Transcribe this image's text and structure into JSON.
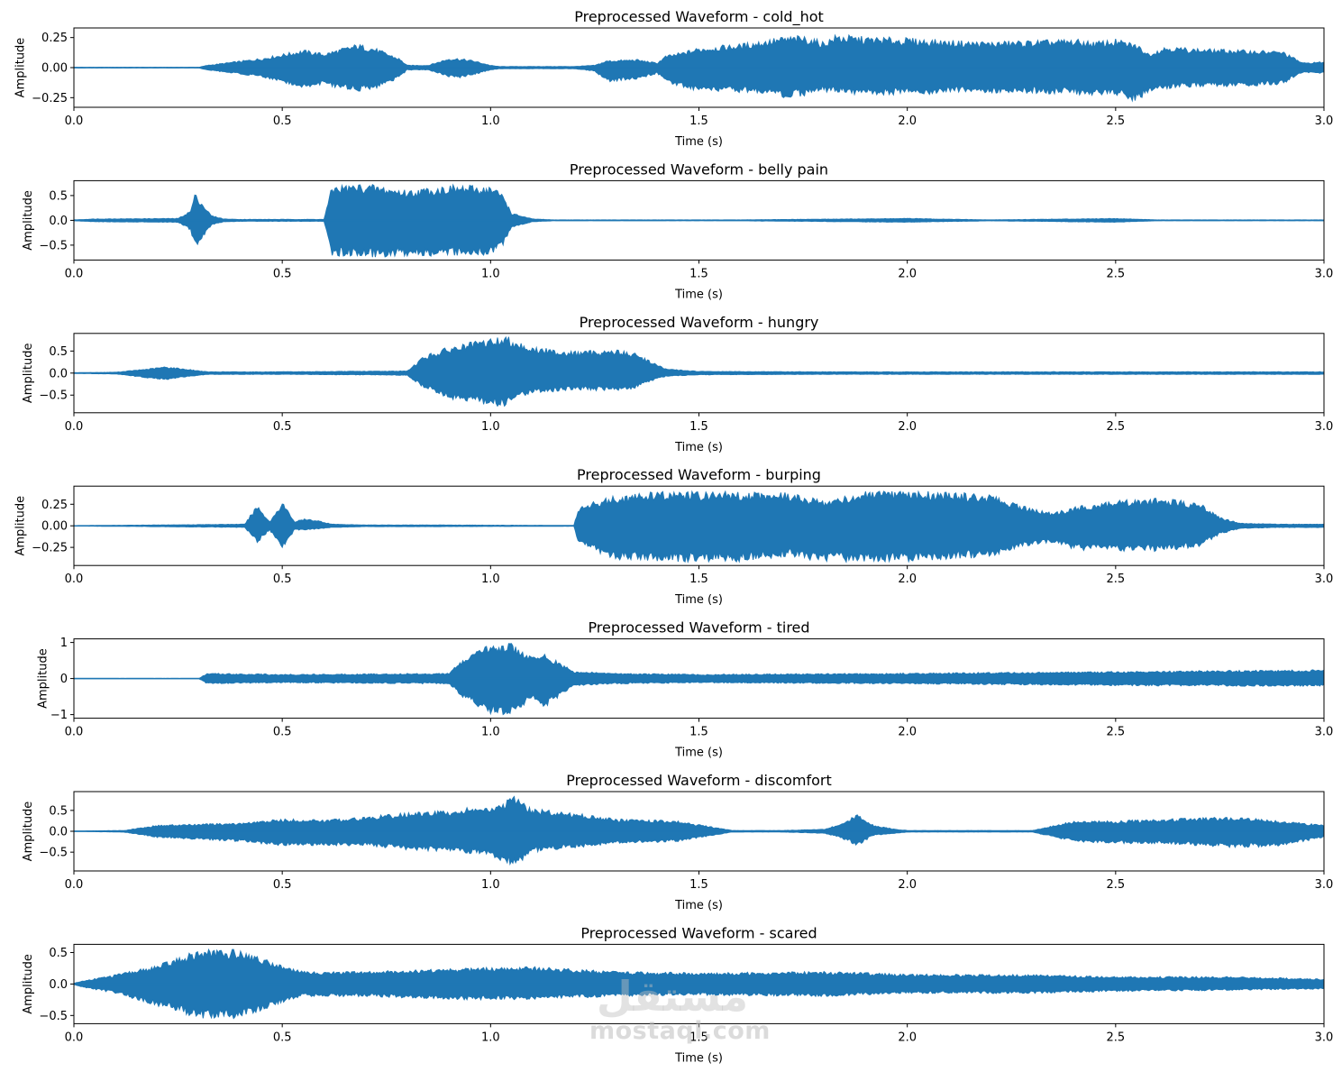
{
  "chart_data": [
    {
      "type": "line",
      "title": "Preprocessed Waveform - cold_hot",
      "xlabel": "Time (s)",
      "ylabel": "Amplitude",
      "xlim": [
        0,
        3
      ],
      "ylim": [
        -0.33,
        0.33
      ],
      "xticks": [
        0,
        0.5,
        1,
        1.5,
        2,
        2.5,
        3
      ],
      "xtick_labels": [
        "0.0",
        "0.5",
        "1.0",
        "1.5",
        "2.0",
        "2.5",
        "3.0"
      ],
      "yticks": [
        -0.25,
        0,
        0.25
      ],
      "ytick_labels": [
        "−0.25",
        "0.00",
        "0.25"
      ],
      "color": "#1f77b4",
      "envelope": {
        "t": [
          0,
          0.3,
          0.32,
          0.45,
          0.55,
          0.6,
          0.68,
          0.72,
          0.78,
          0.8,
          0.85,
          0.9,
          0.92,
          0.96,
          1.0,
          1.02,
          1.2,
          1.25,
          1.28,
          1.35,
          1.4,
          1.42,
          1.46,
          1.5,
          1.6,
          1.7,
          1.75,
          1.8,
          1.83,
          1.9,
          2.0,
          2.1,
          2.2,
          2.3,
          2.4,
          2.45,
          2.5,
          2.55,
          2.58,
          2.62,
          2.7,
          2.8,
          2.9,
          2.95,
          3.0
        ],
        "upper": [
          0.003,
          0.003,
          0.02,
          0.08,
          0.15,
          0.12,
          0.2,
          0.17,
          0.08,
          0.02,
          0.02,
          0.08,
          0.08,
          0.06,
          0.02,
          0.01,
          0.01,
          0.02,
          0.06,
          0.07,
          0.04,
          0.1,
          0.13,
          0.17,
          0.2,
          0.26,
          0.27,
          0.22,
          0.28,
          0.26,
          0.25,
          0.23,
          0.22,
          0.23,
          0.24,
          0.22,
          0.24,
          0.2,
          0.12,
          0.18,
          0.16,
          0.15,
          0.14,
          0.04,
          0.05
        ],
        "lower": [
          -0.003,
          -0.003,
          -0.02,
          -0.08,
          -0.17,
          -0.15,
          -0.2,
          -0.18,
          -0.09,
          -0.02,
          -0.02,
          -0.08,
          -0.09,
          -0.06,
          -0.02,
          -0.01,
          -0.01,
          -0.03,
          -0.12,
          -0.1,
          -0.05,
          -0.12,
          -0.17,
          -0.2,
          -0.21,
          -0.25,
          -0.24,
          -0.2,
          -0.22,
          -0.23,
          -0.23,
          -0.22,
          -0.21,
          -0.22,
          -0.22,
          -0.25,
          -0.23,
          -0.29,
          -0.2,
          -0.18,
          -0.16,
          -0.16,
          -0.14,
          -0.04,
          -0.05
        ]
      }
    },
    {
      "type": "line",
      "title": "Preprocessed Waveform - belly pain",
      "xlabel": "Time (s)",
      "ylabel": "Amplitude",
      "xlim": [
        0,
        3
      ],
      "ylim": [
        -0.8,
        0.8
      ],
      "xticks": [
        0,
        0.5,
        1,
        1.5,
        2,
        2.5,
        3
      ],
      "xtick_labels": [
        "0.0",
        "0.5",
        "1.0",
        "1.5",
        "2.0",
        "2.5",
        "3.0"
      ],
      "yticks": [
        -0.5,
        0,
        0.5
      ],
      "ytick_labels": [
        "−0.5",
        "0.0",
        "0.5"
      ],
      "color": "#1f77b4",
      "envelope": {
        "t": [
          0,
          0.05,
          0.25,
          0.28,
          0.29,
          0.3,
          0.33,
          0.36,
          0.4,
          0.6,
          0.62,
          0.63,
          0.7,
          0.8,
          0.9,
          1.0,
          1.03,
          1.05,
          1.1,
          1.15,
          1.3,
          1.5,
          1.6,
          2.0,
          2.2,
          2.5,
          2.6,
          3.0
        ],
        "upper": [
          0.01,
          0.03,
          0.04,
          0.2,
          0.55,
          0.45,
          0.1,
          0.03,
          0.02,
          0.02,
          0.72,
          0.72,
          0.75,
          0.62,
          0.72,
          0.7,
          0.55,
          0.15,
          0.03,
          0.01,
          0.01,
          0.01,
          0.01,
          0.04,
          0.01,
          0.04,
          0.01,
          0.01
        ],
        "lower": [
          -0.01,
          -0.03,
          -0.04,
          -0.2,
          -0.55,
          -0.5,
          -0.1,
          -0.03,
          -0.02,
          -0.02,
          -0.72,
          -0.72,
          -0.75,
          -0.72,
          -0.72,
          -0.72,
          -0.5,
          -0.15,
          -0.03,
          -0.01,
          -0.01,
          -0.01,
          -0.01,
          -0.04,
          -0.01,
          -0.04,
          -0.01,
          -0.01
        ]
      }
    },
    {
      "type": "line",
      "title": "Preprocessed Waveform - hungry",
      "xlabel": "Time (s)",
      "ylabel": "Amplitude",
      "xlim": [
        0,
        3
      ],
      "ylim": [
        -0.9,
        0.9
      ],
      "xticks": [
        0,
        0.5,
        1,
        1.5,
        2,
        2.5,
        3
      ],
      "xtick_labels": [
        "0.0",
        "0.5",
        "1.0",
        "1.5",
        "2.0",
        "2.5",
        "3.0"
      ],
      "yticks": [
        -0.5,
        0,
        0.5
      ],
      "ytick_labels": [
        "−0.5",
        "0.0",
        "0.5"
      ],
      "color": "#1f77b4",
      "envelope": {
        "t": [
          0,
          0.1,
          0.18,
          0.22,
          0.28,
          0.32,
          0.5,
          0.8,
          0.84,
          0.9,
          1.0,
          1.04,
          1.1,
          1.2,
          1.3,
          1.35,
          1.38,
          1.42,
          1.5,
          1.8,
          2.0,
          3.0
        ],
        "upper": [
          0.01,
          0.02,
          0.1,
          0.15,
          0.08,
          0.03,
          0.03,
          0.05,
          0.4,
          0.6,
          0.8,
          0.85,
          0.6,
          0.5,
          0.55,
          0.45,
          0.3,
          0.1,
          0.04,
          0.03,
          0.03,
          0.03
        ],
        "lower": [
          -0.01,
          -0.02,
          -0.12,
          -0.15,
          -0.08,
          -0.03,
          -0.03,
          -0.05,
          -0.35,
          -0.6,
          -0.75,
          -0.75,
          -0.45,
          -0.4,
          -0.4,
          -0.35,
          -0.2,
          -0.08,
          -0.04,
          -0.03,
          -0.03,
          -0.03
        ]
      }
    },
    {
      "type": "line",
      "title": "Preprocessed Waveform - burping",
      "xlabel": "Time (s)",
      "ylabel": "Amplitude",
      "xlim": [
        0,
        3
      ],
      "ylim": [
        -0.46,
        0.46
      ],
      "xticks": [
        0,
        0.5,
        1,
        1.5,
        2,
        2.5,
        3
      ],
      "xtick_labels": [
        "0.0",
        "0.5",
        "1.0",
        "1.5",
        "2.0",
        "2.5",
        "3.0"
      ],
      "yticks": [
        -0.25,
        0,
        0.25
      ],
      "ytick_labels": [
        "−0.25",
        "0.00",
        "0.25"
      ],
      "color": "#1f77b4",
      "envelope": {
        "t": [
          0,
          0.2,
          0.41,
          0.44,
          0.47,
          0.5,
          0.53,
          0.55,
          0.58,
          0.62,
          0.7,
          0.85,
          1.2,
          1.21,
          1.25,
          1.3,
          1.4,
          1.5,
          1.6,
          1.7,
          1.8,
          1.9,
          2.0,
          2.1,
          2.2,
          2.3,
          2.35,
          2.4,
          2.5,
          2.6,
          2.7,
          2.75,
          2.8,
          2.9,
          3.0
        ],
        "upper": [
          0.003,
          0.01,
          0.02,
          0.25,
          0.05,
          0.29,
          0.05,
          0.08,
          0.07,
          0.02,
          0.01,
          0.01,
          0.005,
          0.2,
          0.3,
          0.35,
          0.4,
          0.4,
          0.4,
          0.4,
          0.3,
          0.4,
          0.4,
          0.4,
          0.36,
          0.2,
          0.15,
          0.22,
          0.3,
          0.32,
          0.28,
          0.1,
          0.03,
          0.02,
          0.02
        ],
        "lower": [
          -0.003,
          -0.01,
          -0.02,
          -0.2,
          -0.05,
          -0.28,
          -0.05,
          -0.05,
          -0.04,
          -0.02,
          -0.01,
          -0.01,
          -0.005,
          -0.2,
          -0.3,
          -0.4,
          -0.42,
          -0.42,
          -0.42,
          -0.36,
          -0.42,
          -0.42,
          -0.42,
          -0.4,
          -0.36,
          -0.22,
          -0.2,
          -0.28,
          -0.3,
          -0.3,
          -0.25,
          -0.1,
          -0.03,
          -0.02,
          -0.02
        ]
      }
    },
    {
      "type": "line",
      "title": "Preprocessed Waveform - tired",
      "xlabel": "Time (s)",
      "ylabel": "Amplitude",
      "xlim": [
        0,
        3
      ],
      "ylim": [
        -1.1,
        1.1
      ],
      "xticks": [
        0,
        0.5,
        1,
        1.5,
        2,
        2.5,
        3
      ],
      "xtick_labels": [
        "0.0",
        "0.5",
        "1.0",
        "1.5",
        "2.0",
        "2.5",
        "3.0"
      ],
      "yticks": [
        -1,
        0,
        1
      ],
      "ytick_labels": [
        "−1",
        "0",
        "1"
      ],
      "color": "#1f77b4",
      "envelope": {
        "t": [
          0,
          0.3,
          0.32,
          0.5,
          0.9,
          0.93,
          1.0,
          1.05,
          1.1,
          1.13,
          1.2,
          1.3,
          1.5,
          2.0,
          2.5,
          3.0
        ],
        "upper": [
          0.005,
          0.005,
          0.15,
          0.12,
          0.15,
          0.5,
          1.0,
          0.98,
          0.6,
          0.7,
          0.2,
          0.15,
          0.12,
          0.15,
          0.2,
          0.25
        ],
        "lower": [
          -0.005,
          -0.005,
          -0.15,
          -0.12,
          -0.15,
          -0.5,
          -1.0,
          -1.0,
          -0.6,
          -0.8,
          -0.2,
          -0.15,
          -0.12,
          -0.15,
          -0.2,
          -0.22
        ]
      }
    },
    {
      "type": "line",
      "title": "Preprocessed Waveform - discomfort",
      "xlabel": "Time (s)",
      "ylabel": "Amplitude",
      "xlim": [
        0,
        3
      ],
      "ylim": [
        -0.95,
        0.95
      ],
      "xticks": [
        0,
        0.5,
        1,
        1.5,
        2,
        2.5,
        3
      ],
      "xtick_labels": [
        "0.0",
        "0.5",
        "1.0",
        "1.5",
        "2.0",
        "2.5",
        "3.0"
      ],
      "yticks": [
        -0.5,
        0,
        0.5
      ],
      "ytick_labels": [
        "−0.5",
        "0.0",
        "0.5"
      ],
      "color": "#1f77b4",
      "envelope": {
        "t": [
          0,
          0.12,
          0.2,
          0.4,
          0.5,
          0.6,
          0.7,
          0.8,
          0.9,
          0.96,
          1.0,
          1.06,
          1.1,
          1.2,
          1.3,
          1.45,
          1.58,
          1.7,
          1.8,
          1.85,
          1.88,
          1.92,
          1.97,
          2.0,
          2.15,
          2.3,
          2.4,
          2.5,
          2.6,
          2.8,
          2.9,
          3.0
        ],
        "upper": [
          0.005,
          0.02,
          0.15,
          0.2,
          0.3,
          0.28,
          0.35,
          0.45,
          0.5,
          0.6,
          0.55,
          0.85,
          0.55,
          0.45,
          0.3,
          0.25,
          0.02,
          0.02,
          0.05,
          0.2,
          0.45,
          0.15,
          0.05,
          0.02,
          0.02,
          0.02,
          0.25,
          0.25,
          0.3,
          0.35,
          0.25,
          0.15
        ],
        "lower": [
          -0.005,
          -0.02,
          -0.15,
          -0.25,
          -0.35,
          -0.35,
          -0.35,
          -0.45,
          -0.5,
          -0.55,
          -0.6,
          -0.85,
          -0.5,
          -0.4,
          -0.3,
          -0.25,
          -0.02,
          -0.02,
          -0.05,
          -0.2,
          -0.35,
          -0.1,
          -0.05,
          -0.02,
          -0.02,
          -0.02,
          -0.25,
          -0.3,
          -0.3,
          -0.4,
          -0.35,
          -0.15
        ]
      }
    },
    {
      "type": "line",
      "title": "Preprocessed Waveform - scared",
      "xlabel": "Time (s)",
      "ylabel": "Amplitude",
      "xlim": [
        0,
        3
      ],
      "ylim": [
        -0.63,
        0.63
      ],
      "xticks": [
        0,
        0.5,
        1,
        1.5,
        2,
        2.5,
        3
      ],
      "xtick_labels": [
        "0.0",
        "0.5",
        "1.0",
        "1.5",
        "2.0",
        "2.5",
        "3.0"
      ],
      "yticks": [
        -0.5,
        0,
        0.5
      ],
      "ytick_labels": [
        "−0.5",
        "0.0",
        "0.5"
      ],
      "color": "#1f77b4",
      "envelope": {
        "t": [
          0,
          0.02,
          0.1,
          0.2,
          0.3,
          0.4,
          0.48,
          0.55,
          0.7,
          0.9,
          1.1,
          1.3,
          1.5,
          1.8,
          2.0,
          2.3,
          2.5,
          2.8,
          3.0
        ],
        "upper": [
          0.01,
          0.05,
          0.15,
          0.3,
          0.55,
          0.55,
          0.35,
          0.2,
          0.2,
          0.25,
          0.28,
          0.2,
          0.18,
          0.2,
          0.16,
          0.15,
          0.12,
          0.12,
          0.08
        ],
        "lower": [
          -0.01,
          -0.05,
          -0.15,
          -0.35,
          -0.55,
          -0.55,
          -0.35,
          -0.2,
          -0.2,
          -0.25,
          -0.25,
          -0.2,
          -0.18,
          -0.2,
          -0.15,
          -0.15,
          -0.12,
          -0.1,
          -0.08
        ]
      }
    }
  ],
  "watermark": {
    "script_text": "مستقل",
    "text": "mostaql.com"
  }
}
